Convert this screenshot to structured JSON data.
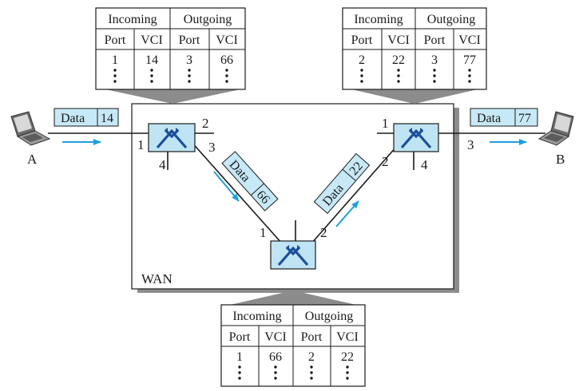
{
  "colors": {
    "switch_fill": "#bfe4f3",
    "frame_fill": "#c7e9f7",
    "arrow": "#1ea0dc",
    "line": "#1a1a1a",
    "wan_shadow": "#8c8c8c"
  },
  "icons": {
    "switch": "switch-icon",
    "laptop": "laptop-icon"
  },
  "wan": {
    "label": "WAN"
  },
  "hosts": {
    "a": "A",
    "b": "B"
  },
  "frames": {
    "in_a": {
      "data": "Data",
      "vci": "14"
    },
    "sw1_to_sw3": {
      "data": "Data",
      "vci": "66"
    },
    "sw3_to_sw2": {
      "data": "Data",
      "vci": "22"
    },
    "out_b": {
      "data": "Data",
      "vci": "77"
    }
  },
  "ports": {
    "sw1": {
      "p1": "1",
      "p2": "2",
      "p3": "3",
      "p4": "4"
    },
    "sw2": {
      "p1": "1",
      "p2": "2",
      "p3": "3",
      "p4": "4"
    },
    "sw3": {
      "p1": "1",
      "p2": "2"
    }
  },
  "tables": {
    "headers": {
      "incoming": "Incoming",
      "outgoing": "Outgoing",
      "port": "Port",
      "vci": "VCI"
    },
    "sw1": {
      "in_port": "1",
      "in_vci": "14",
      "out_port": "3",
      "out_vci": "66"
    },
    "sw2": {
      "in_port": "2",
      "in_vci": "22",
      "out_port": "3",
      "out_vci": "77"
    },
    "sw3": {
      "in_port": "1",
      "in_vci": "66",
      "out_port": "2",
      "out_vci": "22"
    }
  }
}
